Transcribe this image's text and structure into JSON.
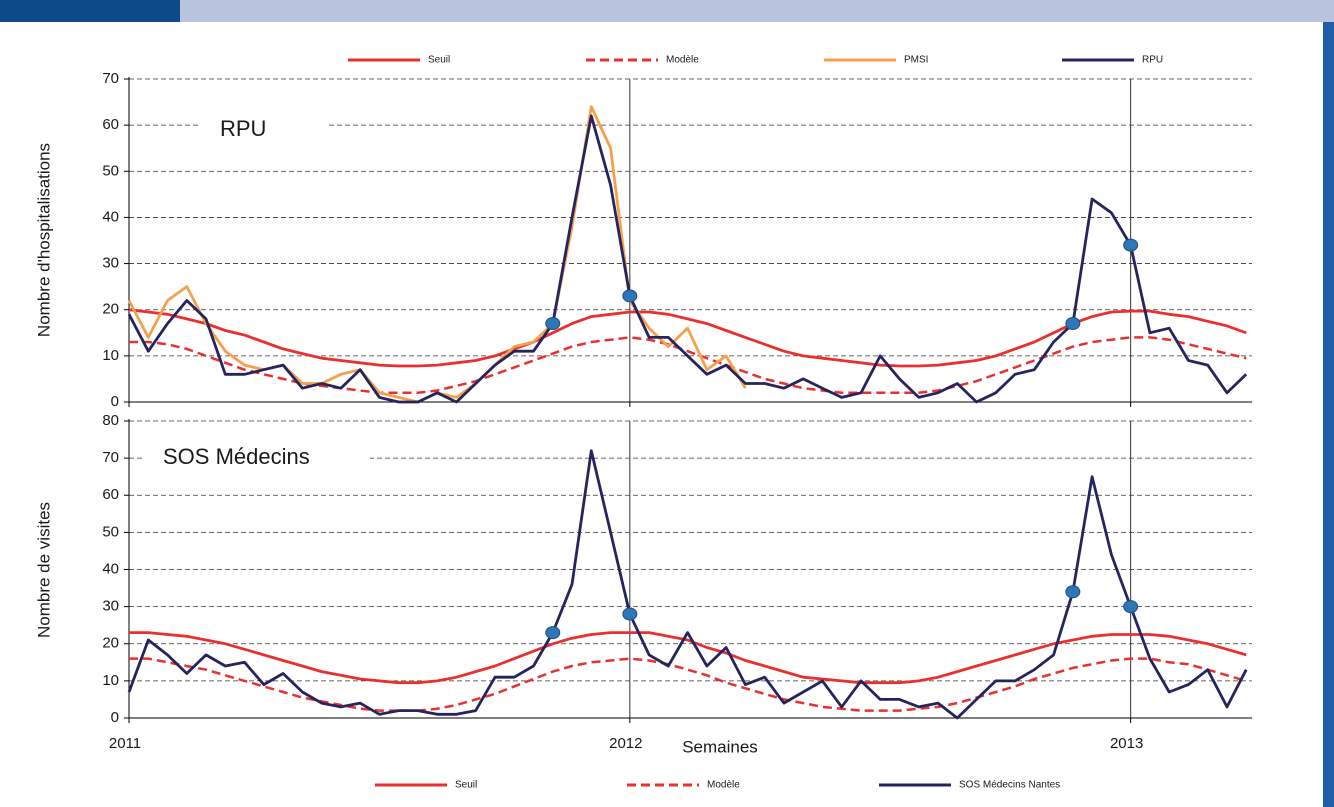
{
  "chart_data": [
    {
      "type": "line",
      "annotation": "RPU",
      "ylabel": "Nombre d'hospitalisations",
      "legend": "top",
      "x": [
        0,
        2,
        4,
        6,
        8,
        10,
        12,
        14,
        16,
        18,
        20,
        22,
        24,
        26,
        28,
        30,
        32,
        34,
        36,
        38,
        40,
        42,
        44,
        46,
        48,
        50,
        52,
        54,
        56,
        58,
        60,
        62,
        64,
        66,
        68,
        70,
        72,
        74,
        76,
        78,
        80,
        82,
        84,
        86,
        88,
        90,
        92,
        94,
        96,
        98,
        100,
        102,
        104,
        106,
        108,
        110,
        112,
        114,
        116
      ],
      "xlim": [
        0,
        116.6
      ],
      "xticks": [
        0,
        52,
        104
      ],
      "ylim": [
        0,
        70
      ],
      "yticks": [
        0,
        10,
        20,
        30,
        40,
        50,
        60,
        70
      ],
      "grid": true,
      "series": [
        {
          "name": "Seuil",
          "color": "#e8312f",
          "dashed": false,
          "values": [
            20,
            19.5,
            19,
            18,
            17,
            15.5,
            14.5,
            13,
            11.5,
            10.5,
            9.5,
            9,
            8.5,
            8,
            7.8,
            7.8,
            8,
            8.5,
            9,
            10,
            11.5,
            13,
            15,
            17,
            18.5,
            19,
            19.5,
            19.5,
            19,
            18,
            17,
            15.5,
            14,
            12.5,
            11,
            10,
            9.5,
            9,
            8.5,
            8,
            7.8,
            7.8,
            8,
            8.5,
            9,
            10,
            11.5,
            13,
            15,
            17,
            18.5,
            19.5,
            19.7,
            19.7,
            19,
            18.5,
            17.5,
            16.5,
            15
          ]
        },
        {
          "name": "Modèle",
          "color": "#e8312f",
          "dashed": true,
          "values": [
            13,
            13,
            12.5,
            11.5,
            10,
            8.5,
            7,
            6,
            5,
            4,
            3.5,
            3,
            2.5,
            2,
            2,
            2,
            2.5,
            3.5,
            4.5,
            6,
            7.5,
            9,
            10.5,
            12,
            13,
            13.5,
            14,
            13.5,
            12.5,
            11,
            9.5,
            8,
            6.5,
            5,
            4,
            3,
            2.5,
            2,
            2,
            2,
            2,
            2,
            2.5,
            3.5,
            4.5,
            6,
            7.5,
            9,
            10.5,
            12,
            13,
            13.5,
            14,
            14,
            13.5,
            12.5,
            11.5,
            10.5,
            9.5
          ]
        },
        {
          "name": "PMSI",
          "color": "#f4a04c",
          "dashed": false,
          "values": [
            22,
            14,
            22,
            25,
            17,
            11,
            8,
            7,
            8,
            4,
            4,
            6,
            7,
            2,
            1,
            0,
            2,
            1,
            4,
            8,
            12,
            13,
            17,
            38,
            64,
            55,
            22,
            16,
            12,
            16,
            7,
            10,
            3,
            null,
            null,
            null,
            null,
            null,
            null,
            null,
            null,
            null,
            null,
            null,
            null,
            null,
            null,
            null,
            null,
            null,
            null,
            null,
            null,
            null,
            null,
            null,
            null,
            null,
            null
          ]
        },
        {
          "name": "RPU",
          "color": "#25245e",
          "dashed": false,
          "values": [
            19,
            11,
            17,
            22,
            18,
            6,
            6,
            7,
            8,
            3,
            4,
            3,
            7,
            1,
            0,
            0,
            2,
            0,
            4,
            8,
            11,
            11,
            17,
            40,
            62,
            47,
            23,
            14,
            14,
            10,
            6,
            8,
            4,
            4,
            3,
            5,
            3,
            1,
            2,
            10,
            5,
            1,
            2,
            4,
            0,
            2,
            6,
            7,
            13,
            17,
            44,
            41,
            34,
            15,
            16,
            9,
            8,
            2,
            6
          ]
        }
      ],
      "markers": {
        "color": "#2e76b5",
        "x": [
          44,
          52,
          98,
          104
        ],
        "values": [
          17,
          23,
          17,
          34
        ]
      }
    },
    {
      "type": "line",
      "annotation": "SOS Médecins",
      "ylabel": "Nombre de visites",
      "xlabel": "Semaines",
      "legend": "bottom",
      "x": [
        0,
        2,
        4,
        6,
        8,
        10,
        12,
        14,
        16,
        18,
        20,
        22,
        24,
        26,
        28,
        30,
        32,
        34,
        36,
        38,
        40,
        42,
        44,
        46,
        48,
        50,
        52,
        54,
        56,
        58,
        60,
        62,
        64,
        66,
        68,
        70,
        72,
        74,
        76,
        78,
        80,
        82,
        84,
        86,
        88,
        90,
        92,
        94,
        96,
        98,
        100,
        102,
        104,
        106,
        108,
        110,
        112,
        114,
        116
      ],
      "xlim": [
        0,
        116.6
      ],
      "xticks": [
        {
          "value": 0,
          "label": "2011"
        },
        {
          "value": 52,
          "label": "2012"
        },
        {
          "value": 104,
          "label": "2013"
        }
      ],
      "ylim": [
        0,
        80
      ],
      "yticks": [
        0,
        10,
        20,
        30,
        40,
        50,
        60,
        70,
        80
      ],
      "grid": true,
      "series": [
        {
          "name": "Seuil",
          "color": "#e8312f",
          "dashed": false,
          "values": [
            23,
            23,
            22.5,
            22,
            21,
            20,
            18.5,
            17,
            15.5,
            14,
            12.5,
            11.5,
            10.5,
            10,
            9.5,
            9.5,
            10,
            11,
            12.5,
            14,
            16,
            18,
            20,
            21.5,
            22.5,
            23,
            23,
            23,
            22,
            21,
            19,
            17.5,
            15.5,
            14,
            12.5,
            11,
            10.5,
            10,
            9.5,
            9.5,
            9.5,
            10,
            11,
            12.5,
            14,
            15.5,
            17,
            18.5,
            20,
            21,
            22,
            22.5,
            22.5,
            22.5,
            22,
            21,
            20,
            18.5,
            17
          ]
        },
        {
          "name": "Modèle",
          "color": "#e8312f",
          "dashed": true,
          "values": [
            16,
            16,
            15,
            14,
            13,
            11.5,
            10,
            8.5,
            7,
            5.5,
            4.5,
            3.5,
            2.5,
            2,
            2,
            2,
            2.5,
            3.5,
            5,
            6.5,
            8.5,
            10.5,
            12.5,
            14,
            15,
            15.5,
            16,
            15.5,
            14.5,
            13,
            11.5,
            9.5,
            8,
            6.5,
            5,
            4,
            3,
            2.5,
            2,
            2,
            2,
            2.5,
            3,
            4,
            5.5,
            7,
            8.5,
            10.5,
            12,
            13.5,
            14.5,
            15.5,
            16,
            16,
            15,
            14.5,
            13,
            11.5,
            10
          ]
        },
        {
          "name": "SOS Médecins Nantes",
          "color": "#25245e",
          "dashed": false,
          "values": [
            7,
            21,
            17,
            12,
            17,
            14,
            15,
            9,
            12,
            7,
            4,
            3,
            4,
            1,
            2,
            2,
            1,
            1,
            2,
            11,
            11,
            14,
            23,
            36,
            72,
            50,
            28,
            17,
            14,
            23,
            14,
            19,
            9,
            11,
            4,
            7,
            10,
            3,
            10,
            5,
            5,
            3,
            4,
            0,
            5,
            10,
            10,
            13,
            17,
            34,
            65,
            44,
            30,
            16,
            7,
            9,
            13,
            3,
            13
          ]
        }
      ],
      "markers": {
        "color": "#2e76b5",
        "x": [
          44,
          52,
          98,
          104
        ],
        "values": [
          23,
          28,
          34,
          30
        ]
      }
    }
  ]
}
